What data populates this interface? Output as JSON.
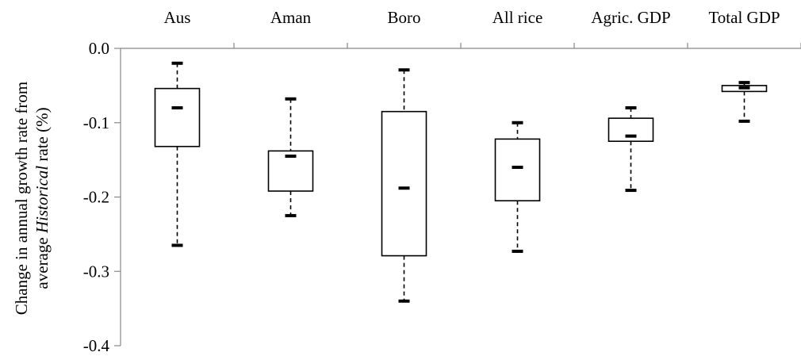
{
  "chart_data": {
    "type": "box",
    "categories": [
      "Aus",
      "Aman",
      "Boro",
      "All rice",
      "Agric. GDP",
      "Total GDP"
    ],
    "series": [
      {
        "category": "Aus",
        "min": -0.265,
        "q1": -0.132,
        "median": -0.08,
        "q3": -0.054,
        "max": -0.02
      },
      {
        "category": "Aman",
        "min": -0.225,
        "q1": -0.192,
        "median": -0.145,
        "q3": -0.138,
        "max": -0.068
      },
      {
        "category": "Boro",
        "min": -0.34,
        "q1": -0.279,
        "median": -0.188,
        "q3": -0.085,
        "max": -0.029
      },
      {
        "category": "All rice",
        "min": -0.273,
        "q1": -0.205,
        "median": -0.16,
        "q3": -0.122,
        "max": -0.1
      },
      {
        "category": "Agric. GDP",
        "min": -0.191,
        "q1": -0.125,
        "median": -0.118,
        "q3": -0.094,
        "max": -0.08
      },
      {
        "category": "Total GDP",
        "min": -0.098,
        "q1": -0.058,
        "median": -0.053,
        "q3": -0.05,
        "max": -0.046
      }
    ],
    "ylabel_line1": "Change in annual growth rate from",
    "ylabel_line2_pre": "average ",
    "ylabel_line2_italic": "Historical",
    "ylabel_line2_post": " rate (%)",
    "ylim": [
      -0.4,
      0.0
    ],
    "yticks": [
      "0.0",
      "-0.1",
      "-0.2",
      "-0.3",
      "-0.4"
    ],
    "ytick_values": [
      0.0,
      -0.1,
      -0.2,
      -0.3,
      -0.4
    ],
    "xaxis_position": "top",
    "grid": false,
    "colors": {
      "box_fill": "#ffffff",
      "stroke": "#000000"
    }
  }
}
